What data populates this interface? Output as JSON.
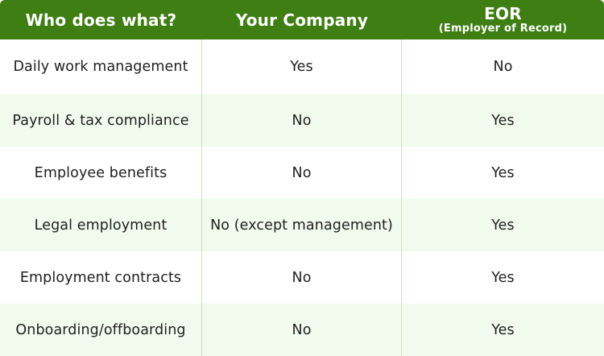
{
  "header": {
    "col1": "Who does what?",
    "col2": "Your Company",
    "col3": "EOR",
    "col3_sub": "(Employer of Record)"
  },
  "rows": [
    {
      "task": "Daily work management",
      "company": "Yes",
      "eor": "No"
    },
    {
      "task": "Payroll & tax compliance",
      "company": "No",
      "eor": "Yes"
    },
    {
      "task": "Employee benefits",
      "company": "No",
      "eor": "Yes"
    },
    {
      "task": "Legal employment",
      "company": "No (except management)",
      "eor": "Yes"
    },
    {
      "task": "Employment contracts",
      "company": "No",
      "eor": "Yes"
    },
    {
      "task": "Onboarding/offboarding",
      "company": "No",
      "eor": "Yes"
    }
  ],
  "colors": {
    "header_bg": "#3e7e12",
    "alt_row_bg": "#f1fbed",
    "divider": "#c9e2bd"
  }
}
